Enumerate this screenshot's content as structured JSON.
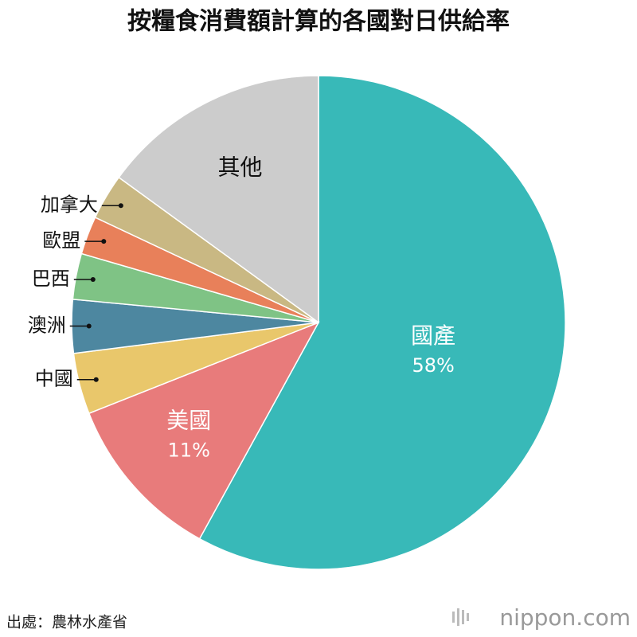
{
  "chart_data": {
    "type": "pie",
    "title": "按糧食消費額計算的各國對日供給率",
    "categories": [
      "國產",
      "美國",
      "中國",
      "澳洲",
      "巴西",
      "歐盟",
      "加拿大",
      "其他"
    ],
    "values": [
      58,
      11,
      4,
      3.5,
      3,
      2.5,
      3,
      15
    ],
    "value_labels": [
      "58%",
      "11%",
      null,
      null,
      null,
      null,
      null,
      null
    ],
    "colors": [
      "#38b9b8",
      "#e87b7b",
      "#e9c76b",
      "#4d87a0",
      "#7fc385",
      "#e8805a",
      "#c9b883",
      "#cccccc"
    ]
  },
  "source": "出處：農林水產省",
  "logo": "nippon.com"
}
